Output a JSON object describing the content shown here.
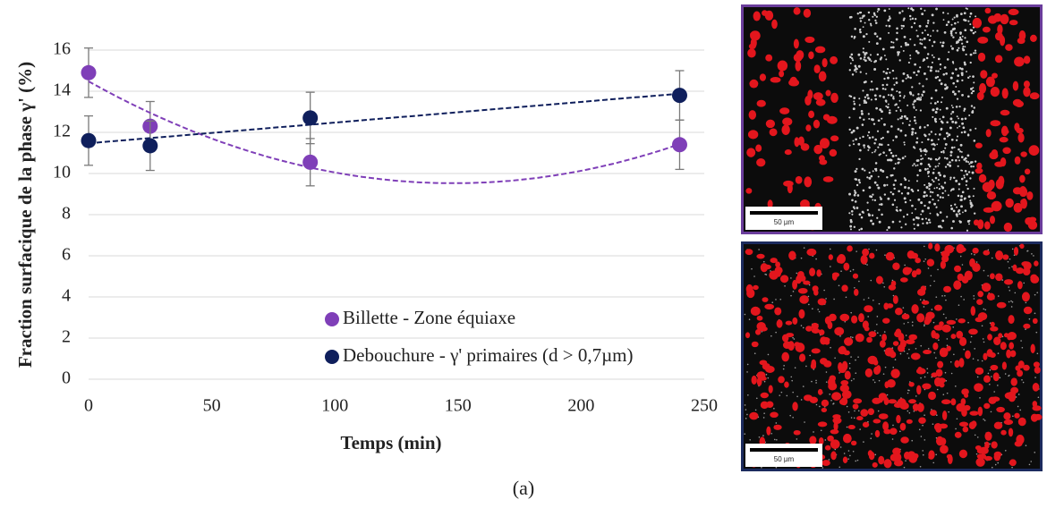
{
  "chart_data": {
    "type": "scatter",
    "x_label": "Temps (min)",
    "y_label": "Fraction surfacique de la phase γ' (%)",
    "xlim": [
      0,
      250
    ],
    "xticks": [
      0,
      50,
      100,
      150,
      200,
      250
    ],
    "ylim": [
      0,
      16
    ],
    "yticks": [
      0,
      2,
      4,
      6,
      8,
      10,
      12,
      14,
      16
    ],
    "grid": true,
    "legend": "lower center",
    "series": [
      {
        "name": "Billette - Zone équiaxe",
        "color": "#7f3fb8",
        "x": [
          0,
          25,
          90,
          240
        ],
        "values": [
          14.9,
          12.3,
          10.55,
          11.4
        ],
        "errors": [
          1.2,
          1.2,
          1.15,
          1.2
        ],
        "trendline_order": 2
      },
      {
        "name": "Debouchure - γ' primaires (d > 0,7µm)",
        "color": "#0f1f5c",
        "x": [
          0,
          25,
          90,
          240
        ],
        "values": [
          11.6,
          11.35,
          12.7,
          13.8
        ],
        "errors": [
          1.2,
          1.2,
          1.25,
          1.2
        ],
        "trendline_order": 1
      }
    ]
  },
  "images": [
    {
      "border_color": "#6b3d9c",
      "scale_label": "50 µm",
      "pattern": "band"
    },
    {
      "border_color": "#1c2b5e",
      "scale_label": "50 µm",
      "pattern": "uniform"
    }
  ],
  "caption": "(a)"
}
